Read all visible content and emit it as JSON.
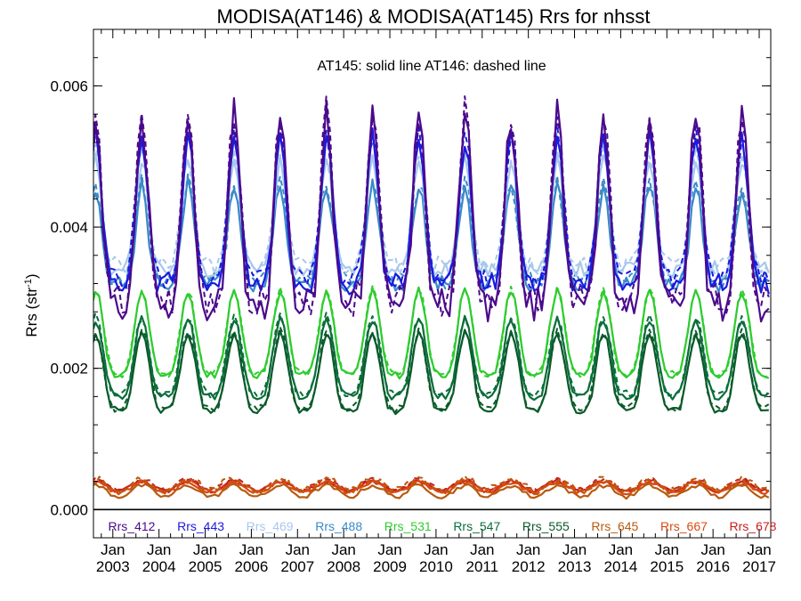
{
  "chart_data": {
    "type": "line",
    "title": "MODISA(AT146) & MODISA(AT145)  Rrs for nhsst",
    "annotation": "AT145: solid line   AT146: dashed line",
    "ylabel_main": "Rrs (str",
    "ylabel_sup": "-1",
    "ylabel_tail": ")",
    "ylim": [
      -0.0004,
      0.0068
    ],
    "xlim": [
      2002.58,
      2017.25
    ],
    "y_ticks": [
      "0.000",
      "0.002",
      "0.004",
      "0.006"
    ],
    "y_tick_values": [
      0,
      0.002,
      0.004,
      0.006
    ],
    "x_tick_years": [
      2003,
      2004,
      2005,
      2006,
      2007,
      2008,
      2009,
      2010,
      2011,
      2012,
      2013,
      2014,
      2015,
      2016,
      2017
    ],
    "x_tick_month": "Jan",
    "x_tick_labels": [
      "2003",
      "2004",
      "2005",
      "2006",
      "2007",
      "2008",
      "2009",
      "2010",
      "2011",
      "2012",
      "2013",
      "2014",
      "2015",
      "2016",
      "2017"
    ],
    "line_styles": {
      "AT145": "solid",
      "AT146": "dashed"
    },
    "series": [
      {
        "name": "Rrs_412",
        "color": "#4b0a8c",
        "min": 0.0029,
        "max": 0.0056,
        "phase": 0.63,
        "sharp": 3.0,
        "noise": 0.00024,
        "dash_offset": 6e-05
      },
      {
        "name": "Rrs_443",
        "color": "#1a1ae0",
        "min": 0.0032,
        "max": 0.0053,
        "phase": 0.63,
        "sharp": 3.0,
        "noise": 0.00016,
        "dash_offset": 7e-05
      },
      {
        "name": "Rrs_469",
        "color": "#a8c8ec",
        "min": 0.0034,
        "max": 0.005,
        "phase": 0.63,
        "sharp": 3.0,
        "noise": 0.00012,
        "dash_offset": 6e-05
      },
      {
        "name": "Rrs_488",
        "color": "#3a8ac8",
        "min": 0.0032,
        "max": 0.0046,
        "phase": 0.63,
        "sharp": 3.0,
        "noise": 0.00012,
        "dash_offset": 6e-05
      },
      {
        "name": "Rrs_531",
        "color": "#2ecc2e",
        "min": 0.0019,
        "max": 0.0031,
        "phase": 0.63,
        "sharp": 2.0,
        "noise": 5e-05,
        "dash_offset": 2e-05
      },
      {
        "name": "Rrs_547",
        "color": "#0a6e3a",
        "min": 0.0016,
        "max": 0.0027,
        "phase": 0.63,
        "sharp": 2.0,
        "noise": 5e-05,
        "dash_offset": 3e-05
      },
      {
        "name": "Rrs_555",
        "color": "#0a5a2a",
        "min": 0.0014,
        "max": 0.0025,
        "phase": 0.63,
        "sharp": 2.0,
        "noise": 5e-05,
        "dash_offset": 3e-05
      },
      {
        "name": "Rrs_645",
        "color": "#b85a10",
        "min": 0.00018,
        "max": 0.00034,
        "phase": 0.63,
        "sharp": 1.0,
        "noise": 3e-05,
        "dash_offset": 9e-05
      },
      {
        "name": "Rrs_667",
        "color": "#d84a10",
        "min": 0.00024,
        "max": 0.00038,
        "phase": 0.63,
        "sharp": 1.0,
        "noise": 3e-05,
        "dash_offset": 2e-05
      },
      {
        "name": "Rrs_678",
        "color": "#c8201e",
        "min": 0.00026,
        "max": 0.0004,
        "phase": 0.63,
        "sharp": 1.0,
        "noise": 3e-05,
        "dash_offset": 2e-05
      }
    ],
    "grid": false,
    "legend_position": "bottom"
  }
}
